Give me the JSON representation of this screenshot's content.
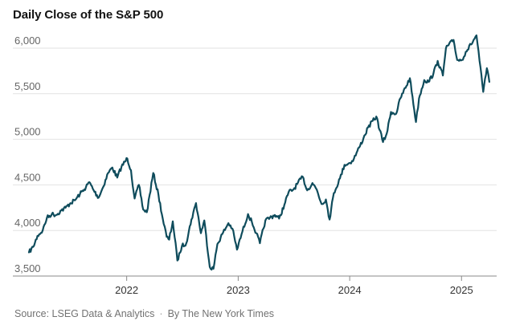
{
  "title": "Daily Close of the S&P 500",
  "footer": {
    "source": "Source: LSEG Data & Analytics",
    "separator": "·",
    "credit": "By The New York Times"
  },
  "colors": {
    "line": "#0f4c5c",
    "grid": "#e2e2e2",
    "axis": "#8a8a8a",
    "tick_text": "#666666"
  },
  "chart_data": {
    "type": "line",
    "title": "Daily Close of the S&P 500",
    "xlabel": "",
    "ylabel": "",
    "ylim": [
      3500,
      6200
    ],
    "xlim": [
      "2021-02-15",
      "2025-04-05"
    ],
    "grid": "horizontal",
    "y_ticks": [
      3500,
      4000,
      4500,
      5000,
      5500,
      6000
    ],
    "y_tick_labels": [
      "3,500",
      "4,000",
      "4,500",
      "5,000",
      "5,500",
      "6,000"
    ],
    "x_ticks": [
      "2022-01-01",
      "2023-01-01",
      "2024-01-01",
      "2025-01-01"
    ],
    "x_tick_labels": [
      "2022",
      "2023",
      "2024",
      "2025"
    ],
    "series": [
      {
        "x": [
          "2021-02-15",
          "2021-03-01",
          "2021-03-15",
          "2021-04-01",
          "2021-04-15",
          "2021-05-01",
          "2021-05-15",
          "2021-06-01",
          "2021-06-15",
          "2021-07-01",
          "2021-07-15",
          "2021-08-01",
          "2021-08-15",
          "2021-09-01",
          "2021-09-15",
          "2021-10-01",
          "2021-10-15",
          "2021-11-01",
          "2021-11-15",
          "2021-12-01",
          "2021-12-15",
          "2022-01-03",
          "2022-01-15",
          "2022-01-27",
          "2022-02-10",
          "2022-02-24",
          "2022-03-08",
          "2022-03-29",
          "2022-04-15",
          "2022-04-29",
          "2022-05-12",
          "2022-05-20",
          "2022-06-01",
          "2022-06-16",
          "2022-07-01",
          "2022-07-15",
          "2022-08-01",
          "2022-08-16",
          "2022-09-01",
          "2022-09-12",
          "2022-09-30",
          "2022-10-12",
          "2022-10-25",
          "2022-11-10",
          "2022-11-30",
          "2022-12-13",
          "2022-12-28",
          "2023-01-15",
          "2023-02-02",
          "2023-02-15",
          "2023-03-01",
          "2023-03-13",
          "2023-03-31",
          "2023-04-15",
          "2023-05-01",
          "2023-05-15",
          "2023-06-01",
          "2023-06-15",
          "2023-07-01",
          "2023-07-31",
          "2023-08-15",
          "2023-09-01",
          "2023-09-15",
          "2023-10-01",
          "2023-10-15",
          "2023-10-27",
          "2023-11-10",
          "2023-11-30",
          "2023-12-15",
          "2024-01-02",
          "2024-01-15",
          "2024-02-01",
          "2024-02-15",
          "2024-03-01",
          "2024-03-28",
          "2024-04-19",
          "2024-05-01",
          "2024-05-15",
          "2024-06-01",
          "2024-06-15",
          "2024-07-16",
          "2024-08-05",
          "2024-08-15",
          "2024-09-01",
          "2024-09-15",
          "2024-10-01",
          "2024-10-15",
          "2024-11-01",
          "2024-11-11",
          "2024-12-06",
          "2024-12-18",
          "2025-01-02",
          "2025-01-15",
          "2025-02-01",
          "2025-02-19",
          "2025-03-01",
          "2025-03-13",
          "2025-03-25",
          "2025-04-02"
        ],
        "y": [
          3760,
          3820,
          3940,
          4000,
          4140,
          4180,
          4170,
          4220,
          4250,
          4300,
          4330,
          4400,
          4450,
          4530,
          4440,
          4360,
          4470,
          4630,
          4690,
          4580,
          4700,
          4790,
          4660,
          4350,
          4500,
          4230,
          4200,
          4630,
          4390,
          4130,
          3930,
          3900,
          4100,
          3670,
          3830,
          3860,
          4120,
          4300,
          3970,
          4110,
          3600,
          3580,
          3850,
          3960,
          4080,
          4020,
          3790,
          3990,
          4180,
          4090,
          3970,
          3860,
          4110,
          4140,
          4170,
          4130,
          4280,
          4420,
          4450,
          4590,
          4440,
          4520,
          4450,
          4290,
          4340,
          4120,
          4410,
          4570,
          4720,
          4740,
          4790,
          4910,
          5010,
          5130,
          5250,
          4970,
          5060,
          5300,
          5280,
          5450,
          5670,
          5190,
          5450,
          5650,
          5630,
          5720,
          5860,
          5700,
          6000,
          6090,
          5870,
          5870,
          5960,
          6040,
          6140,
          5860,
          5520,
          5780,
          5630
        ]
      }
    ]
  }
}
